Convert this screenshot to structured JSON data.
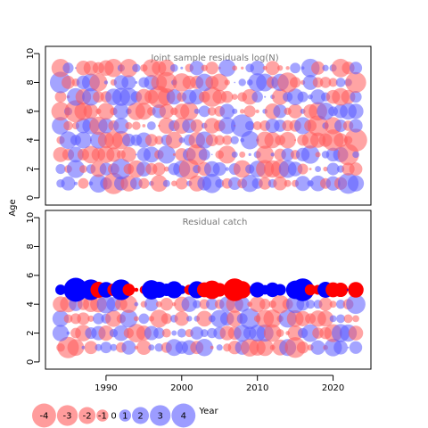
{
  "chart_data": {
    "type": "scatter",
    "subtype": "bubble",
    "xlabel": "Year",
    "ylabel": "Age",
    "xlim": [
      1982,
      2025
    ],
    "ylim": [
      -0.5,
      10.5
    ],
    "x_ticks": [
      "1990",
      "2000",
      "2010",
      "2020"
    ],
    "y_ticks": [
      "0",
      "2",
      "4",
      "6",
      "8",
      "10"
    ],
    "year_range": [
      1984,
      2023
    ],
    "colors": {
      "negative_light": "#FF5A5A",
      "positive_light": "#5A5AFF",
      "negative_strong": "#FF0000",
      "positive_strong": "#0000FF"
    },
    "legend": {
      "position": "bottom-left",
      "values": [
        -4,
        -3,
        -2,
        -1,
        0,
        1,
        2,
        3,
        4
      ],
      "labels": [
        "-4",
        "-3",
        "-2",
        "-1",
        "0",
        "1",
        "2",
        "3",
        "4"
      ]
    },
    "panels": [
      {
        "title": "Joint sample residuals log(N)",
        "ages": [
          1,
          2,
          3,
          4,
          5,
          6,
          7,
          8,
          9
        ],
        "opacity": 0.55,
        "seed": 7,
        "highlights": [
          {
            "age": 8,
            "year": 1984,
            "value": 3.2
          },
          {
            "age": 8,
            "year": 1998,
            "value": -3.0
          },
          {
            "age": 8,
            "year": 2014,
            "value": -2.8
          },
          {
            "age": 8,
            "year": 2023,
            "value": -3.0
          },
          {
            "age": 7,
            "year": 1997,
            "value": -3.4
          },
          {
            "age": 7,
            "year": 2004,
            "value": -2.8
          },
          {
            "age": 6,
            "year": 1986,
            "value": -3.4
          },
          {
            "age": 5,
            "year": 2008,
            "value": 3.6
          },
          {
            "age": 5,
            "year": 2018,
            "value": -3.0
          },
          {
            "age": 4,
            "year": 2020,
            "value": -3.2
          },
          {
            "age": 4,
            "year": 2023,
            "value": -3.6
          },
          {
            "age": 3,
            "year": 2002,
            "value": -3.0
          },
          {
            "age": 3,
            "year": 2022,
            "value": -3.2
          },
          {
            "age": 2,
            "year": 1992,
            "value": 3.0
          },
          {
            "age": 2,
            "year": 2001,
            "value": -3.0
          },
          {
            "age": 1,
            "year": 1991,
            "value": -3.2
          },
          {
            "age": 1,
            "year": 2004,
            "value": 2.6
          },
          {
            "age": 1,
            "year": 2022,
            "value": 3.0
          }
        ]
      },
      {
        "title": "Residual catch",
        "ages": [
          1,
          2,
          3,
          4,
          5
        ],
        "opacity": 0.55,
        "strong_ages": [
          5
        ],
        "seed": 19,
        "highlights": [
          {
            "age": 5,
            "year": 1986,
            "value": 4.0
          },
          {
            "age": 5,
            "year": 1988,
            "value": 3.0
          },
          {
            "age": 5,
            "year": 1992,
            "value": 3.0
          },
          {
            "age": 5,
            "year": 1996,
            "value": 2.6
          },
          {
            "age": 5,
            "year": 2007,
            "value": -3.6
          },
          {
            "age": 5,
            "year": 2016,
            "value": 3.6
          },
          {
            "age": 5,
            "year": 2004,
            "value": -2.4
          },
          {
            "age": 1,
            "year": 1985,
            "value": -3.2
          },
          {
            "age": 1,
            "year": 2015,
            "value": -3.0
          },
          {
            "age": 3,
            "year": 2009,
            "value": 3.0
          },
          {
            "age": 4,
            "year": 2023,
            "value": 2.6
          }
        ]
      }
    ]
  }
}
